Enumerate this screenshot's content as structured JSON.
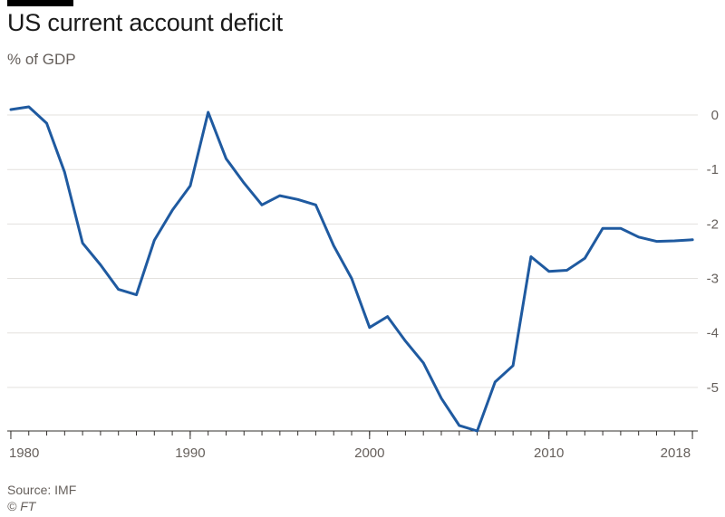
{
  "header": {
    "title": "US current account deficit",
    "subtitle": "% of GDP"
  },
  "footer": {
    "source": "Source: IMF",
    "credit": "© FT"
  },
  "colors": {
    "line": "#1f5aa0",
    "grid": "#e3e1de",
    "axis": "#33302e",
    "text": "#66605c",
    "brand_bar": "#000000"
  },
  "chart_data": {
    "type": "line",
    "title": "US current account deficit",
    "subtitle": "% of GDP",
    "xlabel": "",
    "ylabel": "",
    "x_ticks": [
      1980,
      1990,
      2000,
      2010,
      2018
    ],
    "y_ticks": [
      0,
      -1,
      -2,
      -3,
      -4,
      -5
    ],
    "xlim": [
      1979.8,
      2018.3
    ],
    "ylim": [
      -5.8,
      0.2
    ],
    "grid": true,
    "y_axis_side": "right",
    "series": [
      {
        "x": [
          1980,
          1981,
          1982,
          1983,
          1984,
          1985,
          1986,
          1987,
          1988,
          1989,
          1990,
          1991,
          1992,
          1993,
          1994,
          1995,
          1996,
          1997,
          1998,
          1999,
          2000,
          2001,
          2002,
          2003,
          2004,
          2005,
          2006,
          2007,
          2008,
          2009,
          2010,
          2011,
          2012,
          2013,
          2014,
          2015,
          2016,
          2017,
          2018
        ],
        "values": [
          0.1,
          0.15,
          -0.15,
          -1.05,
          -2.35,
          -2.75,
          -3.2,
          -3.3,
          -2.3,
          -1.75,
          -1.3,
          0.05,
          -0.8,
          -1.25,
          -1.65,
          -1.48,
          -1.55,
          -1.65,
          -2.4,
          -3.0,
          -3.9,
          -3.7,
          -4.15,
          -4.55,
          -5.2,
          -5.7,
          -5.8,
          -4.9,
          -4.6,
          -2.6,
          -2.87,
          -2.85,
          -2.63,
          -2.08,
          -2.08,
          -2.24,
          -2.32,
          -2.31,
          -2.29
        ]
      }
    ]
  }
}
